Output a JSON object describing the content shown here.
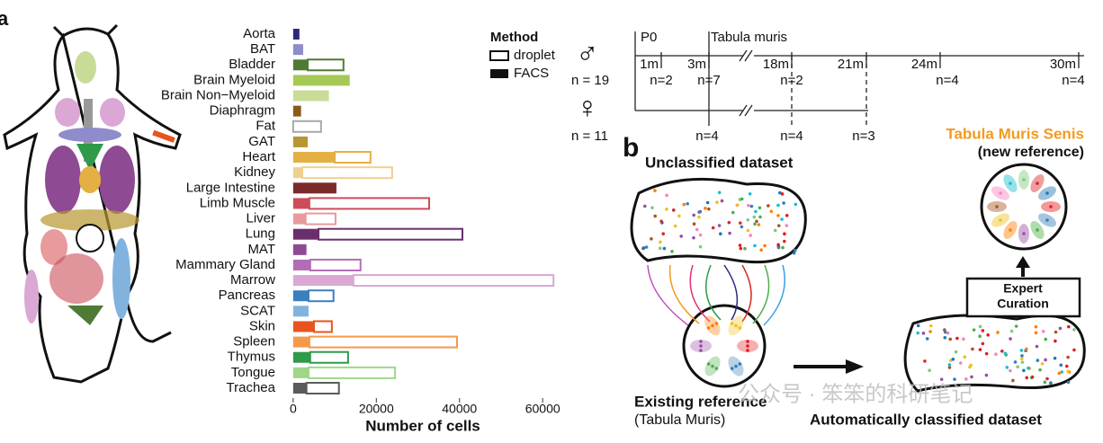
{
  "panel_labels": [
    "a",
    "b"
  ],
  "chart_data": {
    "type": "stacked-barh",
    "categories": [
      "Aorta",
      "BAT",
      "Bladder",
      "Brain Myeloid",
      "Brain Non−Myeloid",
      "Diaphragm",
      "Fat",
      "GAT",
      "Heart",
      "Kidney",
      "Large Intestine",
      "Limb Muscle",
      "Liver",
      "Lung",
      "MAT",
      "Mammary Gland",
      "Marrow",
      "Pancreas",
      "SCAT",
      "Skin",
      "Spleen",
      "Thymus",
      "Tongue",
      "Trachea"
    ],
    "colors": [
      "#2d2a7a",
      "#8e8ccb",
      "#4f7a33",
      "#a5c957",
      "#c8dc98",
      "#8b5a1a",
      "#a8a8a8",
      "#b89630",
      "#e4b043",
      "#f0d08e",
      "#7b2a2a",
      "#cc4c5a",
      "#e89a9d",
      "#6a2e6d",
      "#8e4a92",
      "#b36db4",
      "#dba7d4",
      "#3b7fbf",
      "#82b3df",
      "#e8541e",
      "#f59a4a",
      "#2e9a4a",
      "#9fd68a",
      "#5a5a5a"
    ],
    "series": [
      {
        "name": "FACS",
        "values": [
          1500,
          2400,
          3500,
          13600,
          8600,
          1900,
          0,
          3500,
          10000,
          2200,
          10400,
          3900,
          3000,
          6100,
          3200,
          4100,
          14500,
          3700,
          3700,
          5000,
          3900,
          4100,
          3700,
          3200
        ]
      },
      {
        "name": "droplet",
        "values": [
          0,
          0,
          8600,
          0,
          0,
          0,
          6700,
          0,
          8600,
          21600,
          0,
          28800,
          7200,
          34600,
          0,
          12100,
          48100,
          6000,
          0,
          4300,
          35500,
          9100,
          20800,
          7800
        ]
      }
    ],
    "legend_title": "Method",
    "xlabel": "Number of cells",
    "xlim": [
      -1700,
      65800
    ],
    "xticks": [
      0,
      20000,
      40000,
      60000
    ]
  },
  "timeline": {
    "markers": [
      "P0",
      "Tabula muris"
    ],
    "ages": [
      "1m",
      "3m",
      "18m",
      "21m",
      "24m",
      "30m"
    ],
    "male": {
      "symbol": "♂",
      "total": "n = 19",
      "counts": [
        "n=2",
        "n=7",
        "n=2",
        "n=4",
        "n=4"
      ]
    },
    "female": {
      "symbol": "♀",
      "total": "n = 11",
      "counts": [
        "n=4",
        "n=4",
        "n=3"
      ]
    }
  },
  "panel_b": {
    "unclassified": "Unclassified dataset",
    "existing": "Existing reference",
    "existing_sub": "(Tabula Muris)",
    "curation": [
      "Expert",
      "Curation"
    ],
    "automatic": "Automatically classified dataset",
    "senis": "Tabula Muris Senis",
    "senis_sub": "(new reference)"
  },
  "watermark": "公众号 · 笨笨的科研笔记"
}
